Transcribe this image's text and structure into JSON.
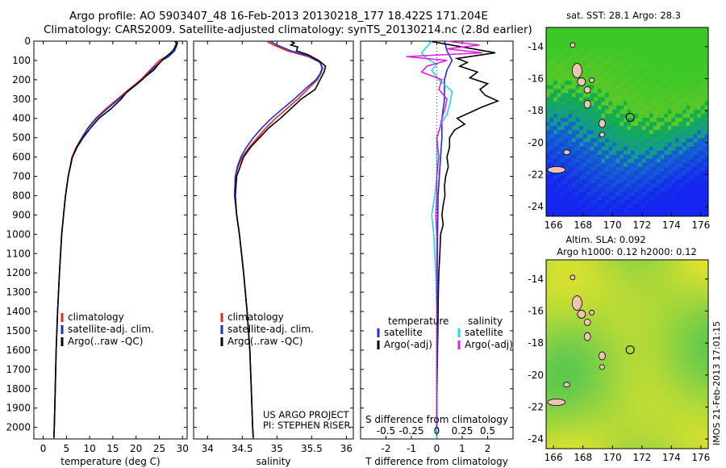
{
  "title_line1": "Argo profile: AO 5903407_48 16-Feb-2013 20130218_177 18.422S 171.204E",
  "title_line2": "Climatology: CARS2009. Satellite-adjusted climatology: synTS_20130214.nc (2.8d earlier)",
  "side_stamp": "IMOS 21-Feb-2013 17:01:15",
  "project_note": [
    "US ARGO PROJECT",
    "PI: STEPHEN RISER"
  ],
  "colors": {
    "climatology": "#e8231f",
    "satellite": "#1a2fd6",
    "argo": "#000000",
    "sat_salinity": "#22d8e8",
    "argo_salinity": "#e020e0",
    "ocean_blue": "#1a3fd0"
  },
  "chart_data": [
    {
      "type": "line",
      "xlabel": "temperature (deg C)",
      "xticks": [
        0,
        5,
        10,
        15,
        20,
        25,
        30
      ],
      "xlim": [
        -2,
        31
      ],
      "yticks": [
        0,
        100,
        200,
        300,
        400,
        500,
        600,
        700,
        800,
        900,
        1000,
        1100,
        1200,
        1300,
        1400,
        1500,
        1600,
        1700,
        1800,
        1900,
        2000
      ],
      "ylim": [
        0,
        2060
      ],
      "legend": [
        "climatology",
        "satellite-adj. clim.",
        "Argo(..raw -QC)"
      ],
      "legend_position": "lower-center",
      "series": [
        {
          "name": "climatology",
          "depth": [
            0,
            20,
            50,
            80,
            100,
            150,
            200,
            250,
            300,
            350,
            400,
            450,
            500,
            550,
            600,
            700,
            800,
            900,
            1000,
            1200,
            1400,
            1600,
            1800,
            2000,
            2060
          ],
          "values": [
            28.6,
            28.5,
            28.0,
            26.5,
            25.0,
            23.0,
            21.0,
            18.5,
            16.0,
            13.5,
            11.3,
            9.6,
            8.3,
            7.1,
            6.2,
            5.4,
            4.8,
            4.4,
            4.0,
            3.5,
            3.1,
            2.8,
            2.6,
            2.4,
            2.3
          ]
        },
        {
          "name": "satellite-adj. clim.",
          "depth": [
            0,
            20,
            50,
            80,
            100,
            150,
            200,
            250,
            300,
            350,
            400,
            450,
            500,
            550,
            600,
            700,
            800,
            900,
            1000,
            1200,
            1400,
            1600,
            1800,
            2000,
            2060
          ],
          "values": [
            28.9,
            28.8,
            28.3,
            27.0,
            25.6,
            23.3,
            21.3,
            18.8,
            16.3,
            13.8,
            11.5,
            9.7,
            8.4,
            7.2,
            6.3,
            5.4,
            4.8,
            4.4,
            4.0,
            3.5,
            3.1,
            2.8,
            2.6,
            2.4,
            2.3
          ]
        },
        {
          "name": "Argo(..raw -QC)",
          "depth": [
            0,
            10,
            40,
            60,
            90,
            120,
            150,
            180,
            220,
            260,
            300,
            350,
            400,
            450,
            500,
            550,
            600,
            700,
            800,
            900,
            1000,
            1200,
            1400,
            1600,
            1800,
            2000,
            2050
          ],
          "values": [
            28.3,
            28.9,
            28.2,
            27.5,
            26.0,
            24.8,
            23.8,
            22.2,
            20.3,
            18.1,
            16.8,
            14.6,
            12.0,
            10.2,
            8.6,
            7.3,
            6.3,
            5.4,
            4.8,
            4.4,
            4.0,
            3.5,
            3.1,
            2.8,
            2.6,
            2.4,
            2.3
          ]
        }
      ]
    },
    {
      "type": "line",
      "xlabel": "salinity",
      "xticks": [
        34,
        34.5,
        35,
        35.5,
        36
      ],
      "xlim": [
        33.8,
        36.1
      ],
      "yticks": [
        0,
        100,
        200,
        300,
        400,
        500,
        600,
        700,
        800,
        900,
        1000,
        1100,
        1200,
        1300,
        1400,
        1500,
        1600,
        1700,
        1800,
        1900,
        2000
      ],
      "ylim": [
        0,
        2060
      ],
      "legend": [
        "climatology",
        "satellite-adj. clim.",
        "Argo(..raw -QC)"
      ],
      "legend_position": "lower-center",
      "series": [
        {
          "name": "climatology",
          "depth": [
            0,
            20,
            50,
            80,
            110,
            140,
            170,
            200,
            250,
            300,
            350,
            400,
            450,
            500,
            550,
            600,
            650,
            700,
            800,
            900,
            1000,
            1200,
            1400,
            1600,
            1800,
            2000,
            2060
          ],
          "values": [
            34.85,
            34.95,
            35.15,
            35.45,
            35.62,
            35.66,
            35.63,
            35.58,
            35.44,
            35.3,
            35.14,
            34.98,
            34.84,
            34.72,
            34.6,
            34.5,
            34.44,
            34.4,
            34.39,
            34.42,
            34.46,
            34.52,
            34.57,
            34.61,
            34.63,
            34.65,
            34.66
          ]
        },
        {
          "name": "satellite-adj. clim.",
          "depth": [
            0,
            20,
            50,
            80,
            110,
            140,
            170,
            200,
            250,
            300,
            350,
            400,
            450,
            500,
            550,
            600,
            650,
            700,
            800,
            900,
            1000,
            1200,
            1400,
            1600,
            1800,
            2000,
            2060
          ],
          "values": [
            34.9,
            35.0,
            35.2,
            35.48,
            35.62,
            35.65,
            35.62,
            35.56,
            35.4,
            35.25,
            35.08,
            34.92,
            34.78,
            34.66,
            34.56,
            34.48,
            34.43,
            34.4,
            34.39,
            34.42,
            34.46,
            34.52,
            34.57,
            34.61,
            34.63,
            34.65,
            34.66
          ]
        },
        {
          "name": "Argo(..raw -QC)",
          "depth": [
            0,
            10,
            20,
            30,
            50,
            70,
            100,
            130,
            160,
            200,
            250,
            300,
            350,
            400,
            450,
            500,
            550,
            600,
            700,
            800,
            900,
            1000,
            1200,
            1400,
            1600,
            1800,
            2000,
            2050
          ],
          "values": [
            35.2,
            35.25,
            35.2,
            35.3,
            35.28,
            35.45,
            35.6,
            35.7,
            35.68,
            35.62,
            35.55,
            35.35,
            35.2,
            35.05,
            34.88,
            34.75,
            34.62,
            34.52,
            34.42,
            34.4,
            34.42,
            34.46,
            34.52,
            34.57,
            34.61,
            34.63,
            34.65,
            34.66
          ]
        }
      ]
    },
    {
      "type": "line",
      "xlabel": "T difference from climatology",
      "xlabel_top": "S difference from climatology",
      "xticks": [
        -2,
        -1,
        0,
        1,
        2
      ],
      "xticks_s": [
        -0.5,
        -0.25,
        0,
        0.25,
        0.5
      ],
      "xlim": [
        -3,
        3
      ],
      "yticks": [
        0,
        100,
        200,
        300,
        400,
        500,
        600,
        700,
        800,
        900,
        1000,
        1100,
        1200,
        1300,
        1400,
        1500,
        1600,
        1700,
        1800,
        1900,
        2000
      ],
      "ylim": [
        0,
        2060
      ],
      "legend_headers": [
        "temperature",
        "salinity"
      ],
      "legend": [
        "satellite",
        "Argo(-adj)",
        "satellite",
        "Argo(-adj)"
      ],
      "legend_position": "lower-center",
      "series": [
        {
          "name": "satellite",
          "depth": [
            0,
            50,
            100,
            150,
            200,
            300,
            400,
            500,
            600,
            700,
            800,
            1000,
            1200,
            1400,
            1600,
            1800,
            2000,
            2060
          ],
          "values": [
            0.3,
            0.4,
            0.6,
            0.4,
            0.3,
            0.3,
            0.2,
            0.2,
            0.15,
            0.1,
            0.05,
            0.03,
            0.02,
            0.01,
            0.0,
            0.0,
            0.0,
            0.0
          ]
        },
        {
          "name": "Argo(-adj)",
          "depth": [
            0,
            30,
            60,
            90,
            110,
            130,
            160,
            190,
            220,
            250,
            280,
            310,
            340,
            370,
            400,
            430,
            460,
            500,
            550,
            600,
            650,
            700,
            750,
            800,
            850,
            900,
            950,
            1000,
            1100,
            1200,
            1300,
            1400,
            1500,
            1600,
            1700,
            1800,
            1900,
            2000
          ],
          "values": [
            -0.3,
            1.0,
            2.3,
            0.8,
            1.2,
            0.9,
            1.6,
            1.3,
            2.0,
            1.7,
            1.9,
            2.4,
            1.8,
            1.3,
            0.8,
            1.1,
            0.7,
            0.5,
            0.5,
            0.4,
            0.45,
            0.35,
            0.3,
            0.32,
            0.25,
            0.2,
            0.25,
            0.15,
            0.12,
            0.08,
            0.06,
            0.05,
            0.04,
            0.03,
            0.02,
            0.01,
            0.0,
            0.0
          ]
        },
        {
          "name": "satellite",
          "depth": [
            0,
            30,
            60,
            90,
            120,
            150,
            200,
            260,
            320,
            380,
            420,
            500,
            600,
            700,
            800,
            900,
            1000,
            1200,
            1400,
            1600,
            1800,
            2000,
            2060
          ],
          "values": [
            -0.05,
            -0.1,
            -0.15,
            -0.1,
            0.0,
            -0.05,
            0.02,
            0.15,
            0.13,
            0.1,
            0.05,
            0.0,
            0.0,
            0.0,
            -0.02,
            -0.05,
            -0.03,
            -0.01,
            0.0,
            0.0,
            0.0,
            0.0,
            0.0
          ]
        },
        {
          "name": "Argo(-adj)",
          "depth": [
            0,
            20,
            40,
            60,
            80,
            100,
            130,
            160,
            200,
            250,
            300,
            350,
            400,
            450,
            500,
            600,
            700,
            800,
            900,
            1000,
            1100,
            1200,
            1400,
            1600,
            1800,
            2000
          ],
          "values": [
            0.1,
            0.42,
            0.1,
            0.45,
            -0.3,
            0.1,
            -0.1,
            -0.15,
            0.05,
            0.02,
            0.1,
            0.08,
            0.05,
            0.03,
            0.0,
            0.02,
            0.0,
            0.0,
            -0.01,
            0.0,
            0.0,
            0.0,
            0.0,
            0.0,
            0.0,
            0.0
          ]
        }
      ]
    },
    {
      "type": "heatmap",
      "title": "sat. SST: 28.1 Argo: 28.3",
      "xticks": [
        166,
        168,
        170,
        172,
        174,
        176
      ],
      "yticks": [
        -14,
        -16,
        -18,
        -20,
        -22,
        -24
      ],
      "xlim": [
        165.5,
        176.5
      ],
      "ylim": [
        -24.6,
        -12.8
      ],
      "marker": {
        "lon": 171.2,
        "lat": -18.42
      }
    },
    {
      "type": "heatmap",
      "title_lines": [
        "Altim. SLA: 0.092",
        "Argo h1000: 0.12 h2000: 0.12"
      ],
      "xticks": [
        166,
        168,
        170,
        172,
        174,
        176
      ],
      "yticks": [
        -14,
        -16,
        -18,
        -20,
        -22,
        -24
      ],
      "xlim": [
        165.5,
        176.5
      ],
      "ylim": [
        -24.6,
        -12.8
      ],
      "marker": {
        "lon": 171.2,
        "lat": -18.42
      }
    }
  ]
}
